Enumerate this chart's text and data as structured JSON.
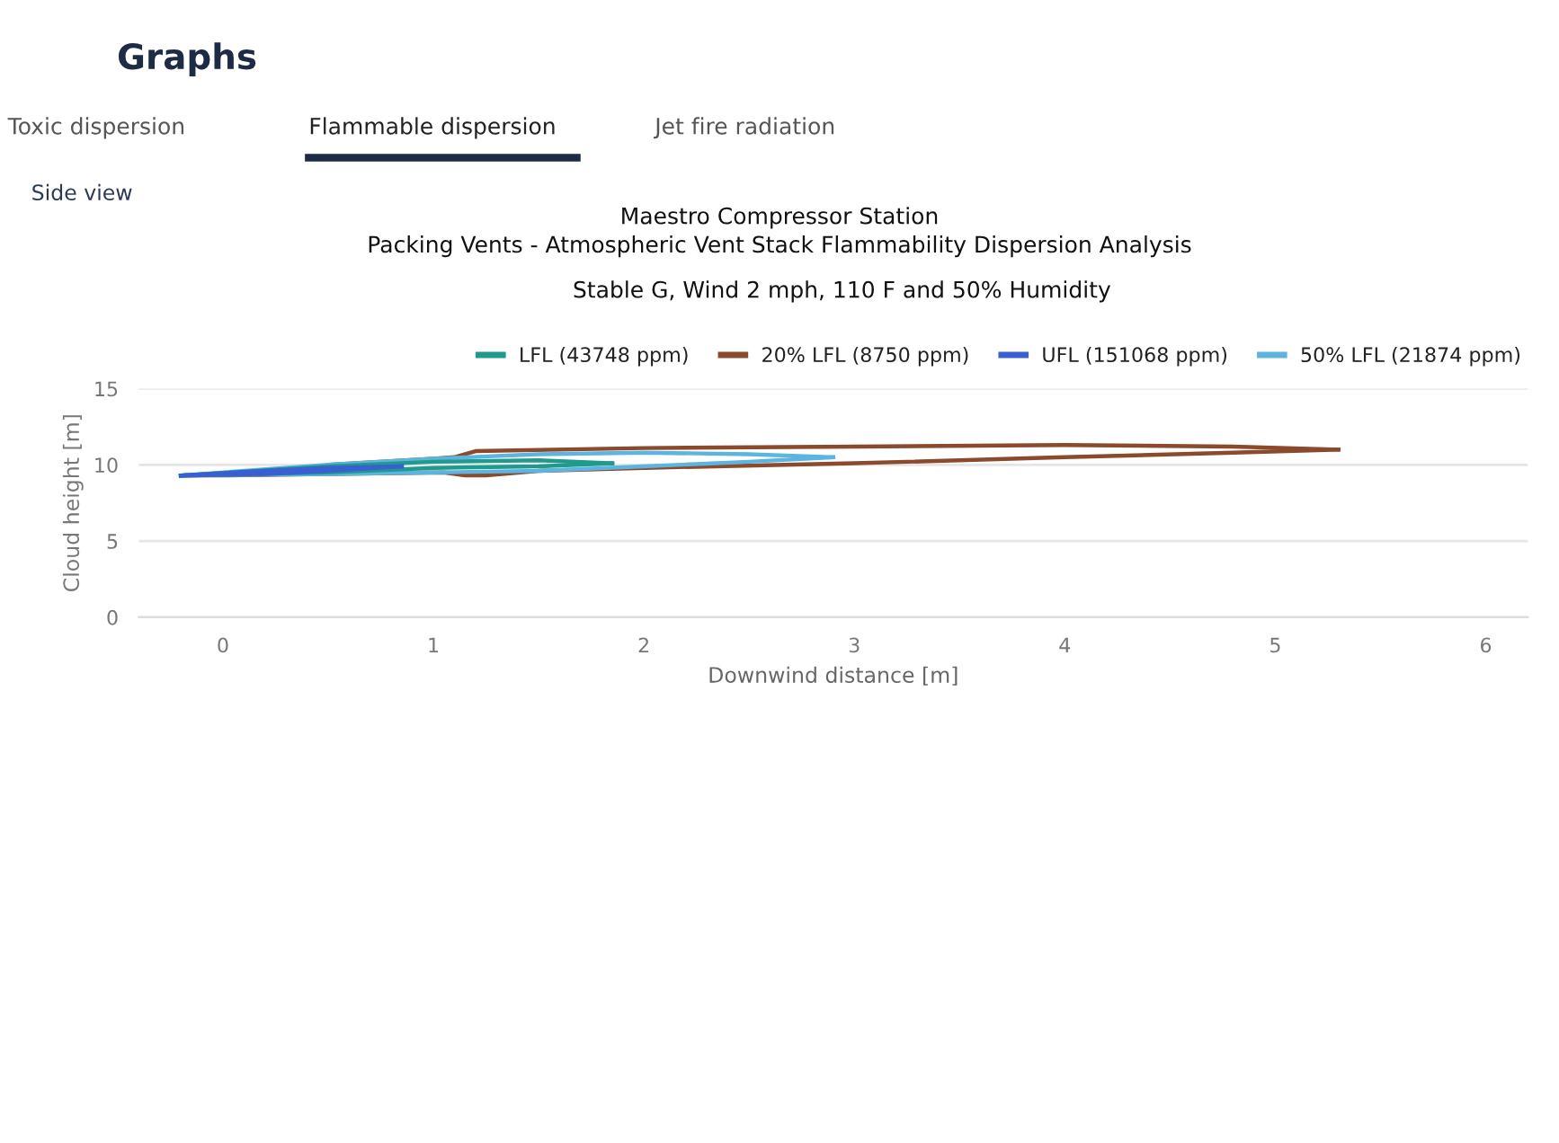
{
  "chart_data": {
    "type": "line",
    "title": "Maestro Compressor Station\nPacking Vents - Atmospheric Vent Stack Flammability Dispersion Analysis",
    "subtitle": "Stable G, Wind 2 mph, 110 F and 50% Humidity",
    "xlabel": "Downwind distance [m]",
    "ylabel": "Cloud height [m]",
    "annotations": [
      "Graphs",
      "Toxic dispersion",
      "Flammable dispersion",
      "Jet fire radiation",
      "Side view"
    ],
    "xlim": [
      -0.4,
      6.2
    ],
    "xticks": [
      0,
      1,
      2,
      3,
      4,
      5,
      6
    ],
    "ylim": [
      0,
      15
    ],
    "yticks": [
      0,
      5,
      10,
      15
    ],
    "grid": "y",
    "legend": "top",
    "marker": "none",
    "line_style": "solid",
    "series": [
      {
        "name": "LFL (43748 ppm)",
        "color": "#1f9a8c",
        "x": [
          -0.2,
          0.5,
          1.0,
          1.5,
          1.85
        ],
        "values": [
          9.3,
          9.9,
          10.2,
          10.3,
          10.1
        ]
      },
      {
        "color": "#1f9a8c",
        "x": [
          -0.2,
          0.5,
          1.0,
          1.5,
          1.85
        ],
        "values": [
          9.3,
          9.5,
          9.8,
          9.9,
          10.1
        ]
      },
      {
        "name": "20% LFL (8750 ppm)",
        "color": "#8b4a2b",
        "x": [
          0.5,
          1.0,
          1.1,
          1.2,
          2.0,
          3.0,
          4.0,
          4.8,
          5.3
        ],
        "values": [
          10.0,
          10.4,
          10.5,
          10.9,
          11.1,
          11.2,
          11.3,
          11.2,
          11.0
        ]
      },
      {
        "color": "#8b4a2b",
        "x": [
          -0.2,
          0.0,
          0.5,
          1.05,
          1.15,
          1.25,
          1.5,
          2.0,
          3.0,
          4.0,
          4.8,
          5.3
        ],
        "values": [
          9.3,
          9.3,
          9.4,
          9.5,
          9.3,
          9.3,
          9.6,
          9.8,
          10.1,
          10.5,
          10.8,
          11.0
        ]
      },
      {
        "name": "UFL (151068 ppm)",
        "color": "#3a5fd0",
        "x": [
          -0.2,
          0.2,
          0.5,
          0.85
        ],
        "values": [
          9.3,
          9.6,
          9.8,
          9.9
        ]
      },
      {
        "color": "#3a5fd0",
        "x": [
          -0.2,
          0.2,
          0.5,
          0.85
        ],
        "values": [
          9.3,
          9.4,
          9.6,
          9.9
        ]
      },
      {
        "name": "50% LFL (21874 ppm)",
        "color": "#5bb5e0",
        "x": [
          -0.2,
          0.5,
          1.0,
          1.5,
          2.0,
          2.5,
          2.9
        ],
        "values": [
          9.3,
          10.0,
          10.4,
          10.7,
          10.8,
          10.7,
          10.5
        ]
      },
      {
        "color": "#5bb5e0",
        "x": [
          -0.2,
          0.5,
          1.0,
          1.5,
          2.0,
          2.5,
          2.9
        ],
        "values": [
          9.3,
          9.4,
          9.5,
          9.6,
          9.9,
          10.2,
          10.5
        ]
      }
    ]
  }
}
